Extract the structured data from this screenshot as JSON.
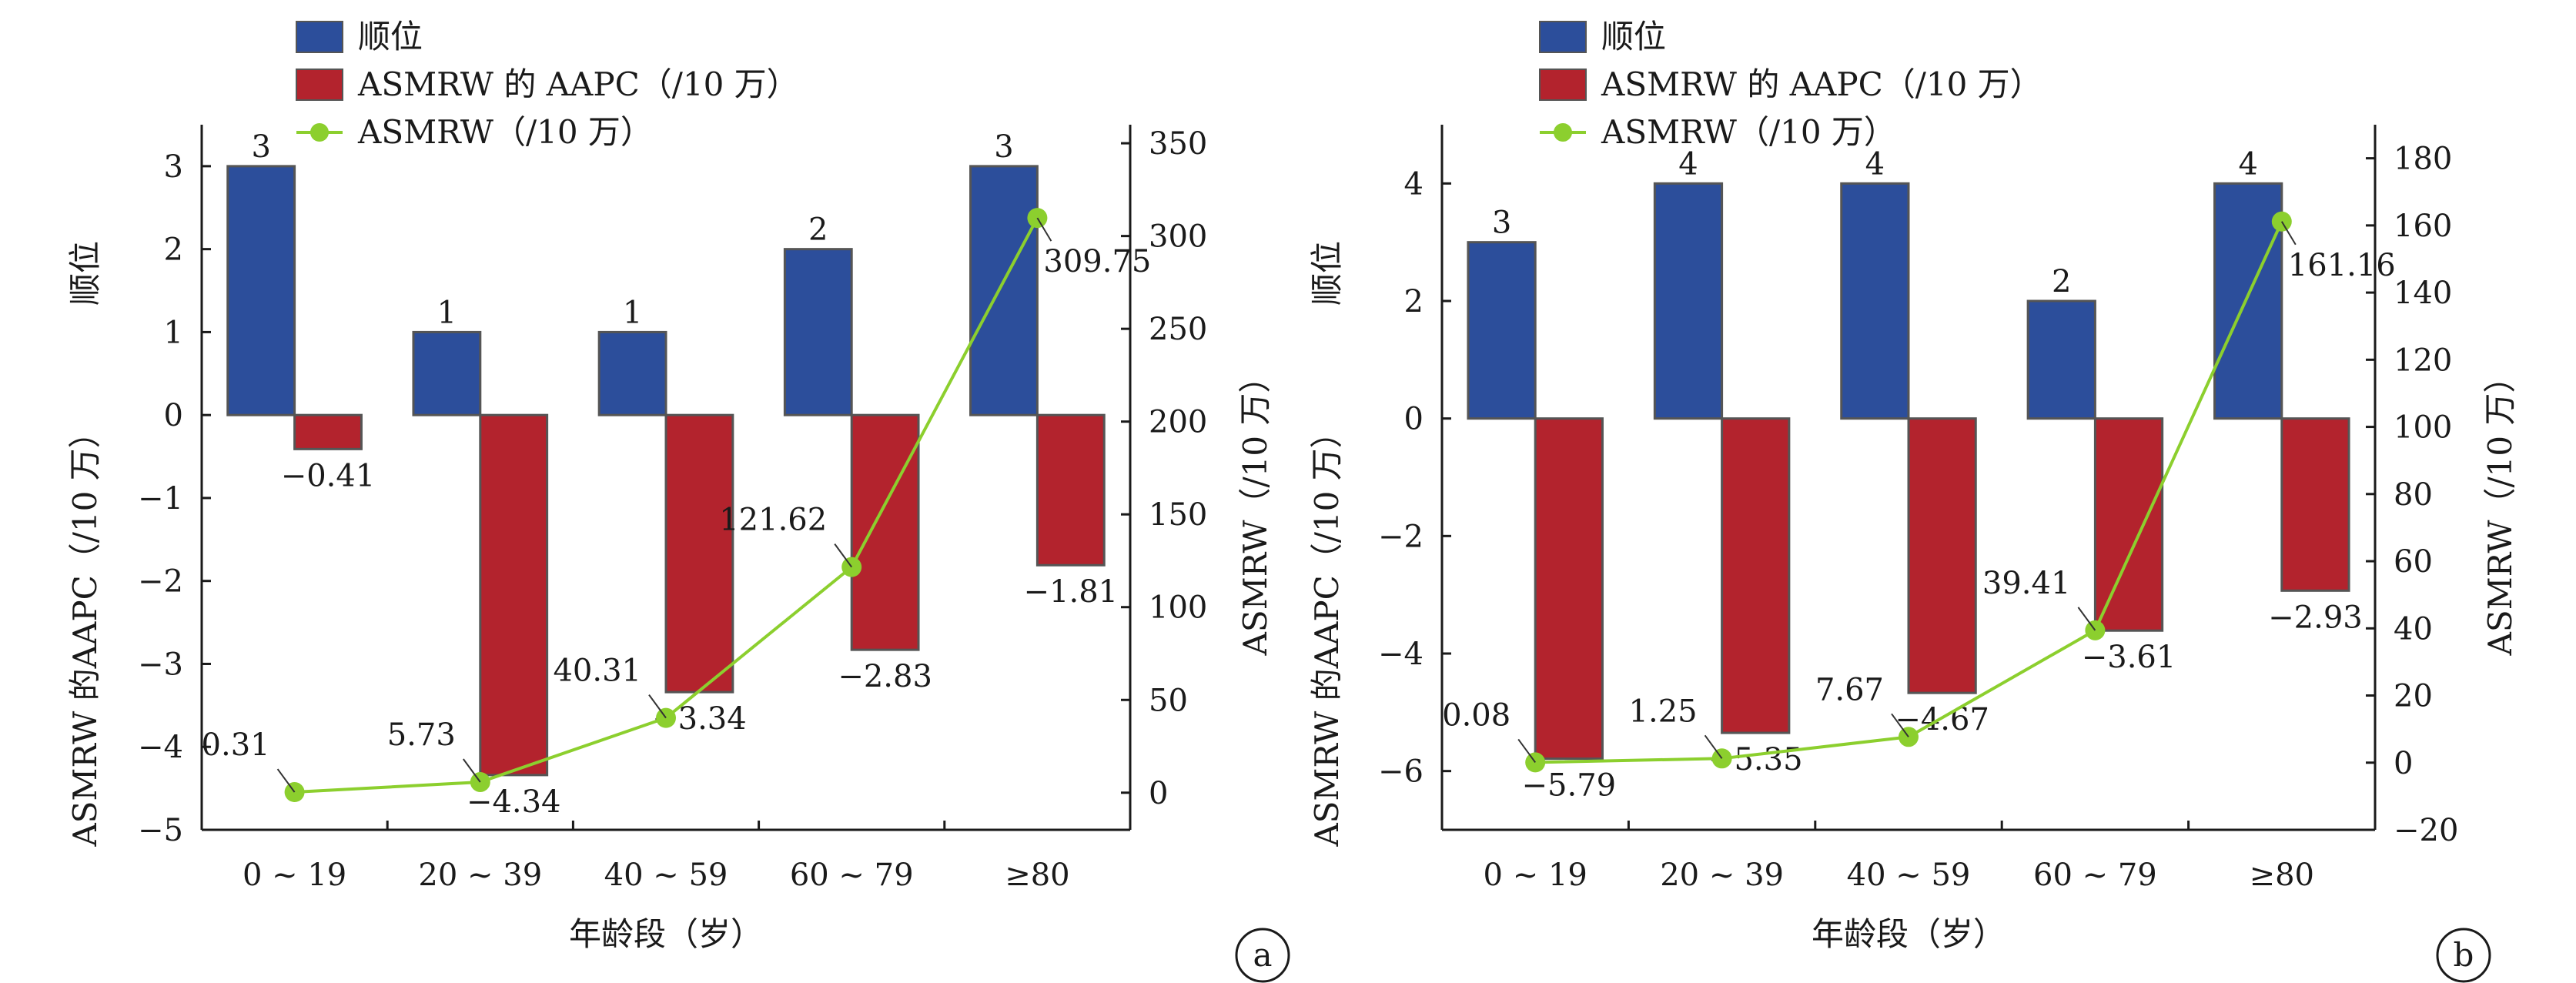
{
  "legend": {
    "rank": "顺位",
    "aapc": "ASMRW 的 AAPC（/10 万）",
    "asmrw": "ASMRW（/10 万）"
  },
  "colors": {
    "rank": "#2c4e9b",
    "aapc": "#b3232d",
    "asmrw": "#8ccf2e",
    "bar_stroke": "#555555",
    "axis": "#1a1a1a"
  },
  "chart_data": [
    {
      "panel": "a",
      "type": "bar",
      "categories": [
        "0 ~ 19",
        "20 ~ 39",
        "40 ~ 59",
        "60 ~ 79",
        "≥80"
      ],
      "xlabel": "年龄段（岁）",
      "ylabel_left_top": "顺位",
      "ylabel_left": "ASMRW 的AAPC（/10 万）",
      "ylabel_right": "ASMRW（/10 万）",
      "ylim_left": [
        -5,
        3.5
      ],
      "yticks_left": [
        -5,
        -4,
        -3,
        -2,
        -1,
        0,
        1,
        2,
        3
      ],
      "ylim_right": [
        -20,
        360
      ],
      "yticks_right": [
        0,
        50,
        100,
        150,
        200,
        250,
        300,
        350
      ],
      "series": [
        {
          "name": "顺位",
          "axis": "left",
          "values": [
            3,
            1,
            1,
            2,
            3
          ]
        },
        {
          "name": "ASMRW 的 AAPC（/10 万）",
          "axis": "left",
          "values": [
            -0.41,
            -4.34,
            -3.34,
            -2.83,
            -1.81
          ]
        },
        {
          "name": "ASMRW（/10 万）",
          "axis": "right",
          "values": [
            0.31,
            5.73,
            40.31,
            121.62,
            309.75
          ]
        }
      ],
      "rank_labels": [
        "3",
        "1",
        "1",
        "2",
        "3"
      ],
      "aapc_labels": [
        "−0.41",
        "−4.34",
        "−3.34",
        "−2.83",
        "−1.81"
      ],
      "asmrw_labels": [
        "0.31",
        "5.73",
        "40.31",
        "121.62",
        "309.75"
      ]
    },
    {
      "panel": "b",
      "type": "bar",
      "categories": [
        "0 ~ 19",
        "20 ~ 39",
        "40 ~ 59",
        "60 ~ 79",
        "≥80"
      ],
      "xlabel": "年龄段（岁）",
      "ylabel_left_top": "顺位",
      "ylabel_left": "ASMRW 的AAPC（/10 万）",
      "ylabel_right": "ASMRW（/10 万）",
      "ylim_left": [
        -7,
        5
      ],
      "yticks_left": [
        -6,
        -4,
        -2,
        0,
        2,
        4
      ],
      "ylim_right": [
        -20,
        190
      ],
      "yticks_right": [
        -20,
        0,
        20,
        40,
        60,
        80,
        100,
        120,
        140,
        160,
        180
      ],
      "series": [
        {
          "name": "顺位",
          "axis": "left",
          "values": [
            3,
            4,
            4,
            2,
            4
          ]
        },
        {
          "name": "ASMRW 的 AAPC（/10 万）",
          "axis": "left",
          "values": [
            -5.79,
            -5.35,
            -4.67,
            -3.61,
            -2.93
          ]
        },
        {
          "name": "ASMRW（/10 万）",
          "axis": "right",
          "values": [
            0.08,
            1.25,
            7.67,
            39.41,
            161.16
          ]
        }
      ],
      "rank_labels": [
        "3",
        "4",
        "4",
        "2",
        "4"
      ],
      "aapc_labels": [
        "−5.79",
        "−5.35",
        "−4.67",
        "−3.61",
        "−2.93"
      ],
      "asmrw_labels": [
        "0.08",
        "1.25",
        "7.67",
        "39.41",
        "161.16"
      ]
    }
  ]
}
